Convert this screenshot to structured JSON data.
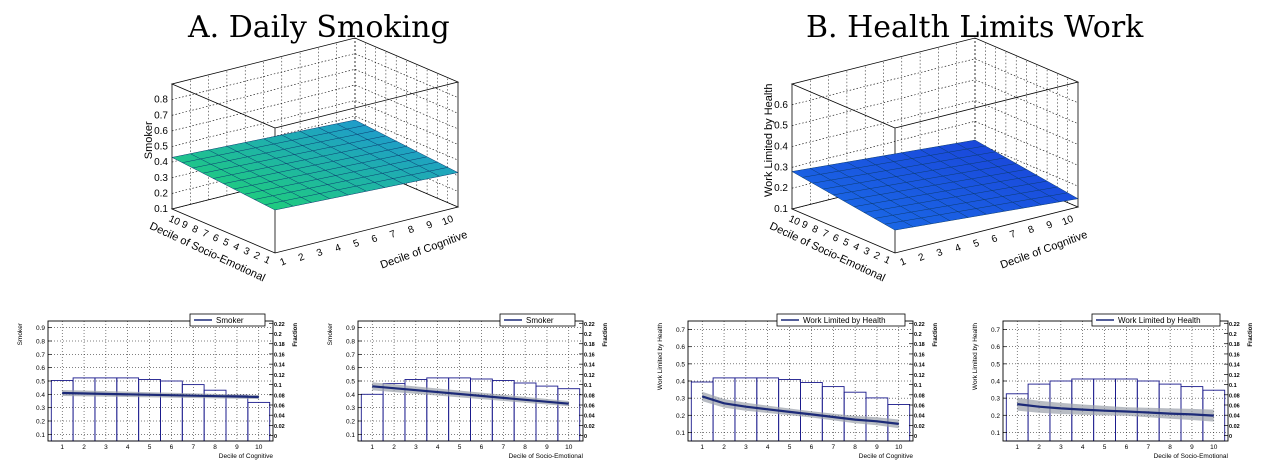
{
  "panels": [
    {
      "title": "A. Daily Smoking",
      "surface": {
        "zlabel": "Smoker",
        "xlabel": "Decile of Cognitive",
        "ylabel": "Decile of Socio-Emotional",
        "zticks": [
          "0.1",
          "0.2",
          "0.3",
          "0.4",
          "0.5",
          "0.6",
          "0.7",
          "0.8"
        ],
        "zrange": [
          0.1,
          0.9
        ],
        "surface_level_front": 0.32,
        "surface_level_back": 0.43,
        "colors": [
          "#1fd96a",
          "#1f8fe0"
        ]
      }
    },
    {
      "title": "B. Health Limits Work",
      "surface": {
        "zlabel": "Work Limited by Health",
        "xlabel": "Decile of Cognitive",
        "ylabel": "Decile of Socio-Emotional",
        "zticks": [
          "0.1",
          "0.2",
          "0.3",
          "0.4",
          "0.5",
          "0.6"
        ],
        "zrange": [
          0.1,
          0.7
        ],
        "surface_level_front": 0.14,
        "surface_level_back": 0.28,
        "colors": [
          "#1a6fe8",
          "#1a3fd8"
        ]
      }
    }
  ],
  "deciles": [
    "1",
    "2",
    "3",
    "4",
    "5",
    "6",
    "7",
    "8",
    "9",
    "10"
  ],
  "chart_data": [
    {
      "type": "bar",
      "ylabel": "Smoker",
      "xlabel": "Decile of Cognitive",
      "y2label": "Fraction",
      "legend": "Smoker",
      "legend_position": "top-right",
      "yticks": [
        "0.1",
        "0.2",
        "0.3",
        "0.4",
        "0.5",
        "0.6",
        "0.7",
        "0.8",
        "0.9"
      ],
      "ylim": [
        0.05,
        0.95
      ],
      "y2ticks": [
        "0",
        "0.02",
        "0.04",
        "0.06",
        "0.08",
        "0.1",
        "0.12",
        "0.14",
        "0.16",
        "0.18",
        "0.2",
        "0.22"
      ],
      "y2lim": [
        -0.0105,
        0.2245
      ],
      "categories": [
        "1",
        "2",
        "3",
        "4",
        "5",
        "6",
        "7",
        "8",
        "9",
        "10"
      ],
      "fraction_values": [
        0.108,
        0.113,
        0.113,
        0.113,
        0.11,
        0.107,
        0.1,
        0.089,
        0.079,
        0.065
      ],
      "line": {
        "name": "Smoker",
        "x": [
          1,
          10
        ],
        "y": [
          0.41,
          0.38
        ]
      },
      "band_halfwidth": 0.015,
      "grid": true
    },
    {
      "type": "bar",
      "ylabel": "Smoker",
      "xlabel": "Decile of Socio-Emotional",
      "y2label": "Fraction",
      "legend": "Smoker",
      "legend_position": "top-right",
      "yticks": [
        "0.1",
        "0.2",
        "0.3",
        "0.4",
        "0.5",
        "0.6",
        "0.7",
        "0.8",
        "0.9"
      ],
      "ylim": [
        0.05,
        0.95
      ],
      "y2ticks": [
        "0",
        "0.02",
        "0.04",
        "0.06",
        "0.08",
        "0.1",
        "0.12",
        "0.14",
        "0.16",
        "0.18",
        "0.2",
        "0.22"
      ],
      "y2lim": [
        -0.0105,
        0.2245
      ],
      "categories": [
        "1",
        "2",
        "3",
        "4",
        "5",
        "6",
        "7",
        "8",
        "9",
        "10"
      ],
      "fraction_values": [
        0.081,
        0.102,
        0.11,
        0.113,
        0.113,
        0.111,
        0.108,
        0.103,
        0.097,
        0.092
      ],
      "line": {
        "name": "Smoker",
        "x": [
          1,
          10
        ],
        "y": [
          0.46,
          0.33
        ]
      },
      "band_halfwidth": 0.02,
      "grid": true
    },
    {
      "type": "bar",
      "ylabel": "Work Limited by Health",
      "xlabel": "Decile of Cognitive",
      "y2label": "Fraction",
      "legend": "Work Limited by Health",
      "legend_position": "top-right",
      "yticks": [
        "0.1",
        "0.2",
        "0.3",
        "0.4",
        "0.5",
        "0.6",
        "0.7"
      ],
      "ylim": [
        0.05,
        0.75
      ],
      "y2ticks": [
        "0",
        "0.02",
        "0.04",
        "0.06",
        "0.08",
        "0.1",
        "0.12",
        "0.14",
        "0.16",
        "0.18",
        "0.2",
        "0.22"
      ],
      "y2lim": [
        -0.0105,
        0.2245
      ],
      "categories": [
        "1",
        "2",
        "3",
        "4",
        "5",
        "6",
        "7",
        "8",
        "9",
        "10"
      ],
      "fraction_values": [
        0.105,
        0.113,
        0.113,
        0.113,
        0.11,
        0.104,
        0.096,
        0.085,
        0.074,
        0.061
      ],
      "line": {
        "name": "Work Limited by Health",
        "x": [
          1,
          2,
          3,
          4,
          5,
          6,
          7,
          8,
          9,
          10
        ],
        "y": [
          0.31,
          0.27,
          0.25,
          0.235,
          0.22,
          0.205,
          0.19,
          0.175,
          0.165,
          0.15
        ]
      },
      "band_halfwidth": 0.018,
      "grid": true
    },
    {
      "type": "bar",
      "ylabel": "Work Limited by Health",
      "xlabel": "Decile of Socio-Emotional",
      "y2label": "Fraction",
      "legend": "Work Limited by Health",
      "legend_position": "top-right",
      "yticks": [
        "0.1",
        "0.2",
        "0.3",
        "0.4",
        "0.5",
        "0.6",
        "0.7"
      ],
      "ylim": [
        0.05,
        0.75
      ],
      "y2ticks": [
        "0",
        "0.02",
        "0.04",
        "0.06",
        "0.08",
        "0.1",
        "0.12",
        "0.14",
        "0.16",
        "0.18",
        "0.2",
        "0.22"
      ],
      "y2lim": [
        -0.0105,
        0.2245
      ],
      "categories": [
        "1",
        "2",
        "3",
        "4",
        "5",
        "6",
        "7",
        "8",
        "9",
        "10"
      ],
      "fraction_values": [
        0.082,
        0.101,
        0.107,
        0.111,
        0.111,
        0.111,
        0.107,
        0.101,
        0.096,
        0.089
      ],
      "line": {
        "name": "Work Limited by Health",
        "x": [
          1,
          2,
          3,
          4,
          5,
          6,
          7,
          8,
          9,
          10
        ],
        "y": [
          0.265,
          0.25,
          0.24,
          0.233,
          0.227,
          0.222,
          0.216,
          0.21,
          0.205,
          0.198
        ]
      },
      "band_halfwidth": 0.025,
      "grid": true
    }
  ]
}
